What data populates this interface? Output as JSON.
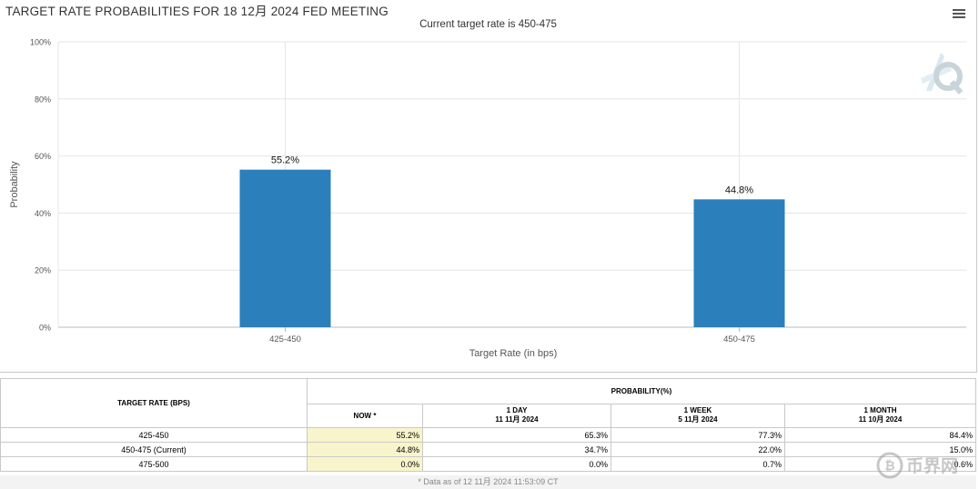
{
  "chart": {
    "title": "TARGET RATE PROBABILITIES FOR 18 12月 2024 FED MEETING",
    "subtitle": "Current target rate is 450-475"
  },
  "chart_data": {
    "type": "bar",
    "categories": [
      "425-450",
      "450-475"
    ],
    "values": [
      55.2,
      44.8
    ],
    "data_labels": [
      "55.2%",
      "44.8%"
    ],
    "xlabel": "Target Rate (in bps)",
    "ylabel": "Probability",
    "ylim": [
      0,
      100
    ],
    "yticks": [
      0,
      20,
      40,
      60,
      80,
      100
    ],
    "ytick_labels": [
      "0%",
      "20%",
      "40%",
      "60%",
      "80%",
      "100%"
    ],
    "grid": true,
    "bar_color": "#2b7fbb"
  },
  "table": {
    "rate_header": "TARGET RATE (BPS)",
    "prob_header": "PROBABILITY(%)",
    "columns": [
      {
        "label": "NOW *",
        "date": ""
      },
      {
        "label": "1 DAY",
        "date": "11 11月 2024"
      },
      {
        "label": "1 WEEK",
        "date": "5 11月 2024"
      },
      {
        "label": "1 MONTH",
        "date": "11 10月 2024"
      }
    ],
    "rows": [
      {
        "rate": "425-450",
        "values": [
          "55.2%",
          "65.3%",
          "77.3%",
          "84.4%"
        ]
      },
      {
        "rate": "450-475 (Current)",
        "values": [
          "44.8%",
          "34.7%",
          "22.0%",
          "15.0%"
        ]
      },
      {
        "rate": "475-500",
        "values": [
          "0.0%",
          "0.0%",
          "0.7%",
          "0.6%"
        ]
      }
    ],
    "note": "* Data as of 12 11月 2024 11:53:09 CT"
  },
  "watermark": {
    "brand_text": "币界网",
    "logo_icon": "bitcoin-circle-icon",
    "q_icon": "q-logo-icon"
  },
  "colors": {
    "now_column_bg": "#f8f5cc",
    "grid": "#e6e6e6"
  }
}
